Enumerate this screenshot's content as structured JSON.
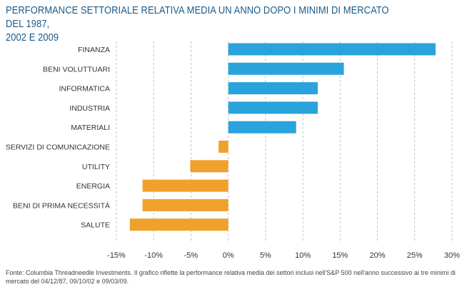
{
  "header": {
    "title_line1": "PERFORMANCE SETTORIALE RELATIVA MEDIA UN ANNO DOPO I MINIMI DI MERCATO DEL 1987,",
    "title_line2": "2002 E 2009"
  },
  "footnote": {
    "line1": "Fonte: Columbia Threadneedle Investments. Il grafico riflette la performance relativa media dei settori inclusi nell'S&P 500 nell'anno successivo ai tre minimi di",
    "line2": "mercato del 04/12/87, 09/10/02 e 09/03/09."
  },
  "colors": {
    "positive": "#2aa3dc",
    "negative": "#f0a12c",
    "grid": "#b0b0b0",
    "title": "#1a5a8a",
    "label": "#333333"
  },
  "chart_data": {
    "type": "bar",
    "orientation": "horizontal",
    "categories": [
      "FINANZA",
      "BENI VOLUTTUARI",
      "INFORMATICA",
      "INDUSTRIA",
      "MATERIALI",
      "SERVIZI DI COMUNICAZIONE",
      "UTILITY",
      "ENERGIA",
      "BENI DI PRIMA NECESSITÀ",
      "SALUTE"
    ],
    "values": [
      27.8,
      15.5,
      12.0,
      12.0,
      9.1,
      -1.3,
      -5.1,
      -11.5,
      -11.5,
      -13.2
    ],
    "xlim": [
      -15,
      30
    ],
    "xticks": [
      -15,
      -10,
      -5,
      0,
      5,
      10,
      15,
      20,
      25,
      30
    ],
    "xtick_labels": [
      "-15%",
      "-10%",
      "-5%",
      "0%",
      "5%",
      "10%",
      "15%",
      "20%",
      "25%",
      "30%"
    ],
    "grid": "vertical-dashed",
    "legend": "none"
  }
}
